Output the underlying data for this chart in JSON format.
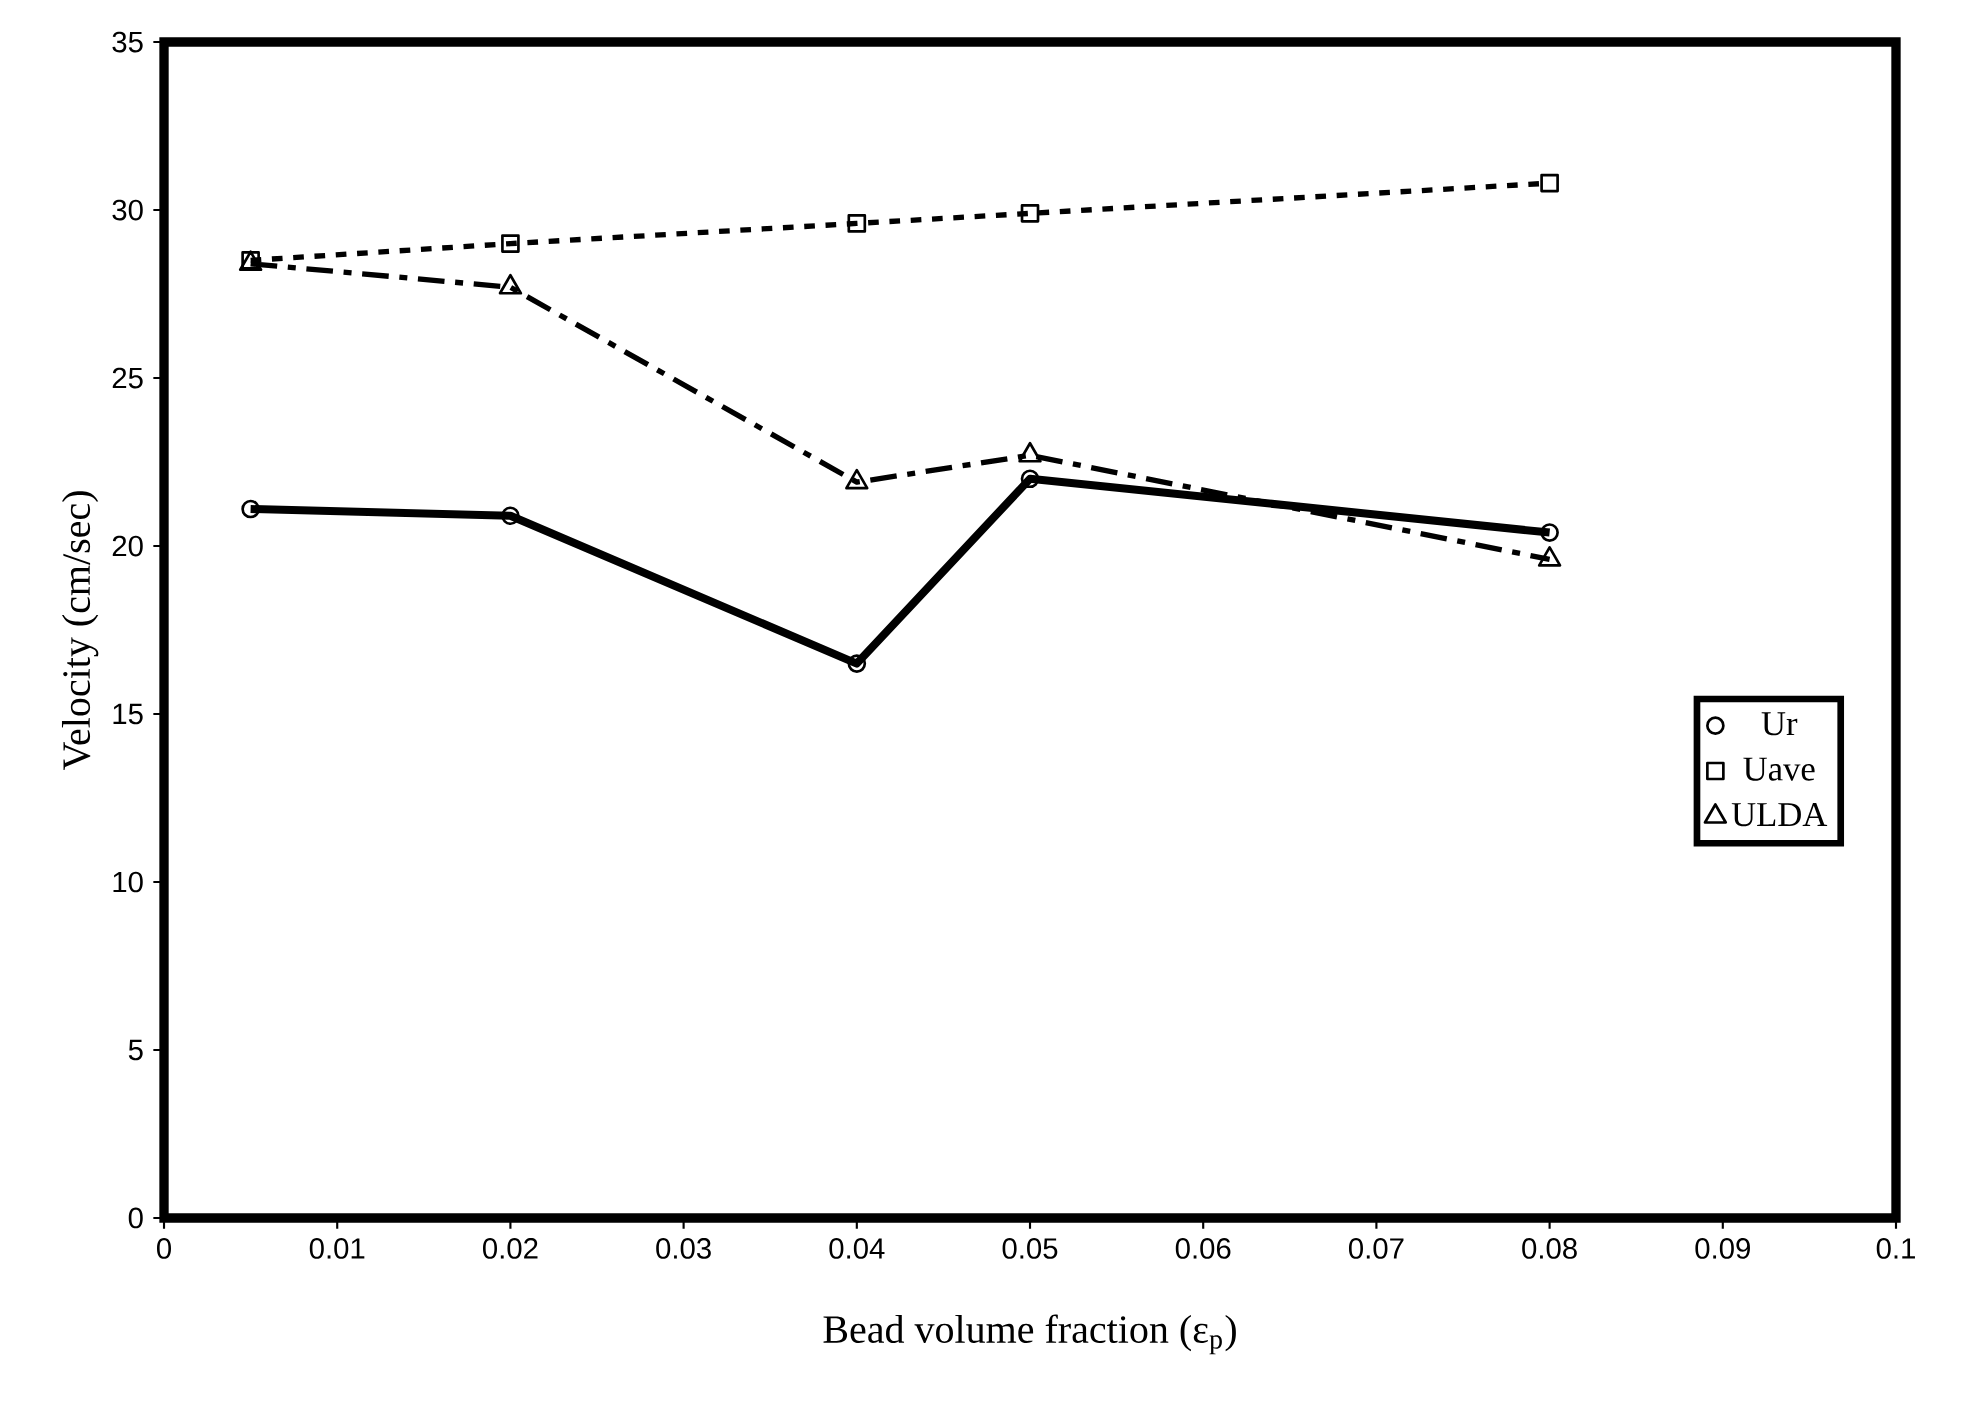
{
  "chart_data": {
    "type": "line",
    "xlabel": "Bead volume fraction (ε$_{p}$)",
    "ylabel": "Velocity (cm/sec)",
    "x": [
      0.005,
      0.02,
      0.04,
      0.05,
      0.08
    ],
    "series": [
      {
        "name": "Ur",
        "color": "#000000",
        "marker": "circle",
        "line_style": "solid",
        "values": [
          21.1,
          20.9,
          16.5,
          22.0,
          20.4
        ]
      },
      {
        "name": "Uave",
        "color": "#000000",
        "marker": "square",
        "line_style": "dotted",
        "values": [
          28.5,
          29.0,
          29.6,
          29.9,
          30.8
        ]
      },
      {
        "name": "ULDA",
        "color": "#000000",
        "marker": "triangle",
        "line_style": "dashed",
        "values": [
          28.4,
          27.7,
          21.9,
          22.7,
          19.6
        ]
      }
    ],
    "xlim": [
      0,
      0.1
    ],
    "xticks": [
      0,
      0.01,
      0.02,
      0.03,
      0.04,
      0.05,
      0.06,
      0.07,
      0.08,
      0.09,
      0.1
    ],
    "ylim": [
      0,
      35
    ],
    "yticks": [
      0,
      5,
      10,
      15,
      20,
      25,
      30,
      35
    ],
    "grid": false,
    "legend": "right"
  }
}
